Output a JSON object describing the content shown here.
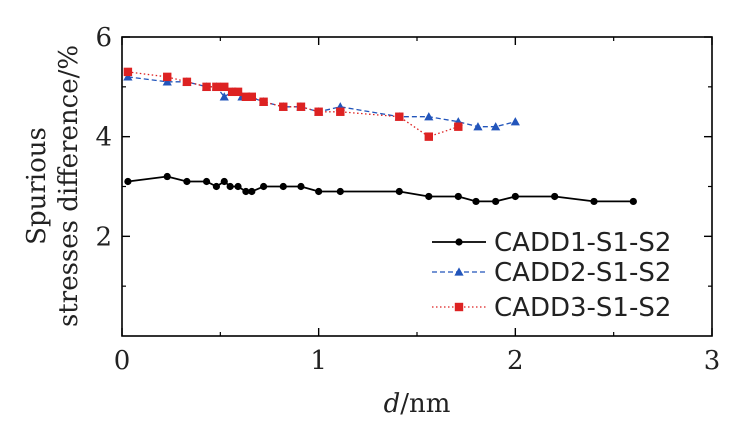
{
  "chart_data": {
    "type": "line",
    "title": "",
    "xlabel": "d/nm",
    "xlabel_var": "d",
    "xlabel_unit": "/nm",
    "ylabel_line1": "Spurious",
    "ylabel_line2": "stresses difference/%",
    "xlim": [
      0,
      3
    ],
    "ylim": [
      0,
      6
    ],
    "xticks": [
      "0",
      "1",
      "2",
      "3"
    ],
    "yticks": [
      "2",
      "4",
      "6"
    ],
    "grid": false,
    "legend_position": "bottom-right",
    "series": [
      {
        "name": "CADD1-S1-S2",
        "color": "#000000",
        "marker": "circle",
        "dash": "solid",
        "x": [
          0.03,
          0.23,
          0.33,
          0.43,
          0.48,
          0.52,
          0.55,
          0.59,
          0.63,
          0.66,
          0.72,
          0.82,
          0.91,
          1.0,
          1.11,
          1.41,
          1.56,
          1.71,
          1.8,
          1.9,
          2.0,
          2.2,
          2.4,
          2.6
        ],
        "values": [
          3.1,
          3.2,
          3.1,
          3.1,
          3.0,
          3.1,
          3.0,
          3.0,
          2.9,
          2.9,
          3.0,
          3.0,
          3.0,
          2.9,
          2.9,
          2.9,
          2.8,
          2.8,
          2.7,
          2.7,
          2.8,
          2.8,
          2.7,
          2.7
        ]
      },
      {
        "name": "CADD2-S1-S2",
        "color": "#2255bb",
        "marker": "triangle",
        "dash": "dashed",
        "x": [
          0.03,
          0.23,
          0.33,
          0.43,
          0.48,
          0.52,
          0.56,
          0.61,
          0.65,
          0.72,
          0.82,
          0.91,
          1.0,
          1.11,
          1.41,
          1.56,
          1.71,
          1.81,
          1.9,
          2.0
        ],
        "values": [
          5.2,
          5.1,
          5.1,
          5.0,
          5.0,
          4.8,
          4.9,
          4.8,
          4.8,
          4.7,
          4.6,
          4.6,
          4.5,
          4.6,
          4.4,
          4.4,
          4.3,
          4.2,
          4.2,
          4.3
        ]
      },
      {
        "name": "CADD3-S1-S2",
        "color": "#dd2222",
        "marker": "square",
        "dash": "dotted",
        "x": [
          0.03,
          0.23,
          0.33,
          0.43,
          0.48,
          0.52,
          0.56,
          0.59,
          0.63,
          0.66,
          0.72,
          0.82,
          0.91,
          1.0,
          1.11,
          1.41,
          1.56,
          1.71
        ],
        "values": [
          5.3,
          5.2,
          5.1,
          5.0,
          5.0,
          5.0,
          4.9,
          4.9,
          4.8,
          4.8,
          4.7,
          4.6,
          4.6,
          4.5,
          4.5,
          4.4,
          4.0,
          4.2
        ]
      }
    ]
  }
}
